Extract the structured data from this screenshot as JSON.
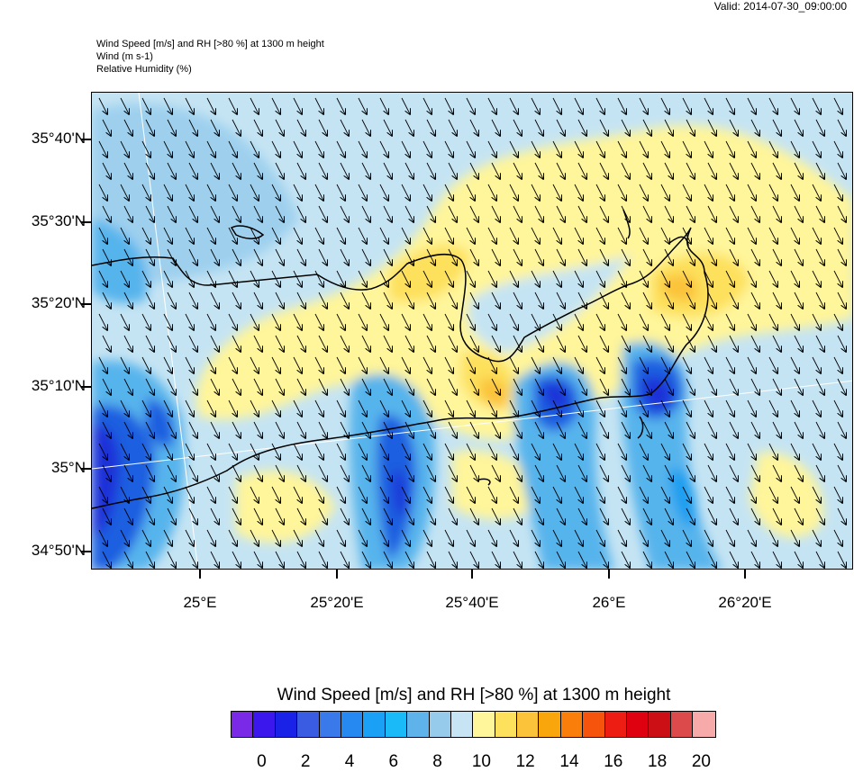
{
  "valid_time": "Valid: 2014-07-30_09:00:00",
  "titles": {
    "line1": "Wind Speed [m/s] and RH [>80 %] at 1300 m height",
    "line2": "Wind   (m s-1)",
    "line3": "Relative Humidity   (%)"
  },
  "map": {
    "lat_labels": [
      "35°40'N",
      "35°30'N",
      "35°20'N",
      "35°10'N",
      "35°N",
      "34°50'N"
    ],
    "lon_labels": [
      "25°E",
      "25°20'E",
      "25°40'E",
      "26°E",
      "26°20'E"
    ],
    "wind_direction": "north-northwest to south-southeast",
    "colors": {
      "background": "#c5e4f3",
      "yellow_light": "#fff59a",
      "yellow": "#fde05c",
      "orange": "#fbc33a",
      "blue_light": "#9ed0ee",
      "blue_mid": "#57b4ec",
      "blue": "#1b9ef0",
      "blue_dark": "#1a5fe0",
      "blue_deep": "#1c31d8"
    }
  },
  "colorbar": {
    "title": "Wind Speed [m/s] and RH [>80 %] at 1300 m height",
    "colors": [
      "#7a2ae6",
      "#3b17ee",
      "#1b22e8",
      "#3a5ce2",
      "#3a79ea",
      "#2689f2",
      "#1aa1f5",
      "#1ab9f7",
      "#5eb4ea",
      "#97cbec",
      "#c6e4f4",
      "#fff59a",
      "#fde05c",
      "#fbc33a",
      "#f9a60c",
      "#f97f0a",
      "#f6540d",
      "#ee1d13",
      "#e00110",
      "#cc0f14",
      "#dd4a4c",
      "#f7aaaa"
    ],
    "labels": [
      "0",
      "2",
      "4",
      "6",
      "8",
      "10",
      "12",
      "14",
      "16",
      "18",
      "20"
    ]
  }
}
